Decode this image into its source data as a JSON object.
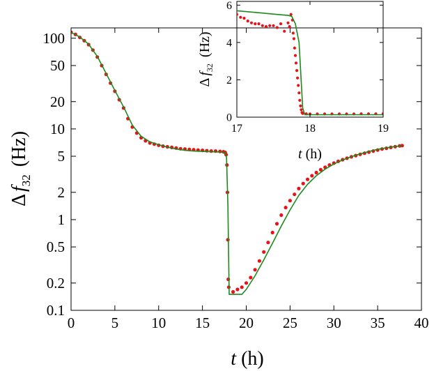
{
  "chart_data": [
    {
      "id": "main",
      "type": "scatter",
      "xlabel": {
        "italic": "t",
        "unit": "(h)"
      },
      "ylabel": {
        "prefix": "Δ",
        "italic": "f",
        "sub": "32",
        "unit": "(Hz)"
      },
      "xlim": [
        0,
        40
      ],
      "ylim": [
        0.1,
        130
      ],
      "yscale": "log",
      "xticks": [
        0,
        5,
        10,
        15,
        20,
        25,
        30,
        35,
        40
      ],
      "xtick_labels": [
        "0",
        "5",
        "10",
        "15",
        "20",
        "25",
        "30",
        "35",
        "40"
      ],
      "yticks": [
        0.1,
        0.2,
        0.5,
        1,
        2,
        5,
        10,
        20,
        50,
        100
      ],
      "ytick_labels": [
        "0.1",
        "0.2",
        "0.5",
        "1",
        "2",
        "5",
        "10",
        "20",
        "50",
        "100"
      ],
      "grid": false,
      "colors": {
        "data": "#e8131a",
        "model": "#1a8a1a"
      },
      "series": [
        {
          "kind": "measured",
          "style": "red-dots",
          "points": [
            [
              0.0,
              116
            ],
            [
              0.5,
              110
            ],
            [
              1.0,
              102
            ],
            [
              1.5,
              94
            ],
            [
              2.0,
              85
            ],
            [
              2.5,
              74
            ],
            [
              3.0,
              62
            ],
            [
              3.5,
              50
            ],
            [
              4.0,
              40
            ],
            [
              4.5,
              32
            ],
            [
              5.0,
              26
            ],
            [
              5.5,
              21
            ],
            [
              6.0,
              17
            ],
            [
              6.5,
              13
            ],
            [
              7.0,
              10.5
            ],
            [
              7.5,
              9.0
            ],
            [
              8.0,
              8.0
            ],
            [
              8.5,
              7.4
            ],
            [
              9.0,
              7.0
            ],
            [
              9.5,
              6.8
            ],
            [
              10.0,
              6.6
            ],
            [
              10.5,
              6.45
            ],
            [
              11.0,
              6.35
            ],
            [
              11.5,
              6.25
            ],
            [
              12.0,
              6.15
            ],
            [
              12.5,
              6.05
            ],
            [
              13.0,
              6.0
            ],
            [
              13.5,
              5.95
            ],
            [
              14.0,
              5.9
            ],
            [
              14.5,
              5.85
            ],
            [
              15.0,
              5.8
            ],
            [
              15.5,
              5.75
            ],
            [
              16.0,
              5.7
            ],
            [
              16.5,
              5.7
            ],
            [
              17.0,
              5.65
            ],
            [
              17.4,
              5.6
            ],
            [
              17.6,
              5.5
            ],
            [
              17.7,
              5.2
            ],
            [
              17.8,
              4.0
            ],
            [
              17.85,
              2.0
            ],
            [
              17.9,
              0.6
            ],
            [
              17.95,
              0.22
            ],
            [
              18.0,
              0.18
            ],
            [
              18.5,
              0.16
            ],
            [
              19.0,
              0.17
            ],
            [
              19.5,
              0.18
            ],
            [
              20.0,
              0.2
            ],
            [
              20.5,
              0.23
            ],
            [
              21.0,
              0.28
            ],
            [
              21.5,
              0.35
            ],
            [
              22.0,
              0.44
            ],
            [
              22.5,
              0.56
            ],
            [
              23.0,
              0.72
            ],
            [
              23.5,
              0.9
            ],
            [
              24.0,
              1.12
            ],
            [
              24.5,
              1.36
            ],
            [
              25.0,
              1.62
            ],
            [
              25.5,
              1.9
            ],
            [
              26.0,
              2.2
            ],
            [
              26.5,
              2.5
            ],
            [
              27.0,
              2.78
            ],
            [
              27.5,
              3.05
            ],
            [
              28.0,
              3.3
            ],
            [
              28.5,
              3.55
            ],
            [
              29.0,
              3.78
            ],
            [
              29.5,
              4.0
            ],
            [
              30.0,
              4.2
            ],
            [
              30.5,
              4.4
            ],
            [
              31.0,
              4.58
            ],
            [
              31.5,
              4.75
            ],
            [
              32.0,
              4.92
            ],
            [
              32.5,
              5.08
            ],
            [
              33.0,
              5.25
            ],
            [
              33.5,
              5.4
            ],
            [
              34.0,
              5.55
            ],
            [
              34.5,
              5.7
            ],
            [
              35.0,
              5.85
            ],
            [
              35.5,
              6.0
            ],
            [
              36.0,
              6.12
            ],
            [
              36.5,
              6.25
            ],
            [
              37.0,
              6.38
            ],
            [
              37.5,
              6.5
            ],
            [
              37.8,
              6.55
            ]
          ]
        },
        {
          "kind": "model",
          "style": "green-line",
          "points": [
            [
              0.0,
              116
            ],
            [
              1.0,
              103
            ],
            [
              2.0,
              86
            ],
            [
              3.0,
              63
            ],
            [
              4.0,
              41
            ],
            [
              5.0,
              26.5
            ],
            [
              6.0,
              17.5
            ],
            [
              7.0,
              11.0
            ],
            [
              8.0,
              8.3
            ],
            [
              9.0,
              7.2
            ],
            [
              10.0,
              6.7
            ],
            [
              11.0,
              6.3
            ],
            [
              12.0,
              6.0
            ],
            [
              13.0,
              5.8
            ],
            [
              14.0,
              5.7
            ],
            [
              15.0,
              5.65
            ],
            [
              16.0,
              5.6
            ],
            [
              17.0,
              5.55
            ],
            [
              17.6,
              5.5
            ],
            [
              17.75,
              4.8
            ],
            [
              17.9,
              1.5
            ],
            [
              18.0,
              0.3
            ],
            [
              18.05,
              0.15
            ],
            [
              19.5,
              0.15
            ],
            [
              20.0,
              0.17
            ],
            [
              21.0,
              0.24
            ],
            [
              22.0,
              0.36
            ],
            [
              23.0,
              0.55
            ],
            [
              24.0,
              0.85
            ],
            [
              25.0,
              1.28
            ],
            [
              26.0,
              1.85
            ],
            [
              27.0,
              2.45
            ],
            [
              28.0,
              3.05
            ],
            [
              29.0,
              3.6
            ],
            [
              30.0,
              4.1
            ],
            [
              31.0,
              4.55
            ],
            [
              32.0,
              4.95
            ],
            [
              33.0,
              5.3
            ],
            [
              34.0,
              5.65
            ],
            [
              35.0,
              5.95
            ],
            [
              36.0,
              6.2
            ],
            [
              37.0,
              6.4
            ],
            [
              37.8,
              6.5
            ]
          ]
        }
      ]
    },
    {
      "id": "inset",
      "type": "scatter",
      "xlabel": {
        "italic": "t",
        "unit": "(h)"
      },
      "ylabel": {
        "prefix": "Δ",
        "italic": "f",
        "sub": "32",
        "unit": "(Hz)"
      },
      "xlim": [
        17,
        19
      ],
      "ylim": [
        0,
        6.2
      ],
      "yscale": "linear",
      "xticks": [
        17,
        18,
        19
      ],
      "xtick_labels": [
        "17",
        "18",
        "19"
      ],
      "yticks": [
        0,
        2,
        4,
        6
      ],
      "ytick_labels": [
        "0",
        "2",
        "4",
        "6"
      ],
      "grid": false,
      "colors": {
        "data": "#e8131a",
        "model": "#1a8a1a"
      },
      "series": [
        {
          "kind": "measured",
          "style": "red-dots",
          "points": [
            [
              17.0,
              5.5
            ],
            [
              17.05,
              5.35
            ],
            [
              17.1,
              5.3
            ],
            [
              17.15,
              5.15
            ],
            [
              17.2,
              5.05
            ],
            [
              17.25,
              5.0
            ],
            [
              17.3,
              5.0
            ],
            [
              17.35,
              4.9
            ],
            [
              17.4,
              4.85
            ],
            [
              17.45,
              4.9
            ],
            [
              17.5,
              4.9
            ],
            [
              17.55,
              4.8
            ],
            [
              17.6,
              5.0
            ],
            [
              17.65,
              4.6
            ],
            [
              17.7,
              5.05
            ],
            [
              17.72,
              4.85
            ],
            [
              17.74,
              5.5
            ],
            [
              17.76,
              5.2
            ],
            [
              17.77,
              4.5
            ],
            [
              17.78,
              4.2
            ],
            [
              17.79,
              3.7
            ],
            [
              17.8,
              3.3
            ],
            [
              17.81,
              2.9
            ],
            [
              17.82,
              2.5
            ],
            [
              17.83,
              2.1
            ],
            [
              17.84,
              1.7
            ],
            [
              17.85,
              1.3
            ],
            [
              17.86,
              0.9
            ],
            [
              17.87,
              0.6
            ],
            [
              17.88,
              0.4
            ],
            [
              17.89,
              0.25
            ],
            [
              17.9,
              0.2
            ],
            [
              17.95,
              0.18
            ],
            [
              18.0,
              0.17
            ],
            [
              18.1,
              0.17
            ],
            [
              18.2,
              0.17
            ],
            [
              18.3,
              0.17
            ],
            [
              18.4,
              0.17
            ],
            [
              18.5,
              0.17
            ],
            [
              18.6,
              0.17
            ],
            [
              18.7,
              0.18
            ],
            [
              18.8,
              0.18
            ],
            [
              18.9,
              0.18
            ],
            [
              19.0,
              0.19
            ]
          ]
        },
        {
          "kind": "model",
          "style": "green-line",
          "points": [
            [
              17.0,
              5.7
            ],
            [
              17.7,
              5.45
            ],
            [
              17.75,
              5.4
            ],
            [
              17.8,
              5.0
            ],
            [
              17.85,
              4.0
            ],
            [
              17.9,
              0.5
            ],
            [
              17.93,
              0.13
            ],
            [
              19.0,
              0.13
            ]
          ]
        }
      ]
    }
  ]
}
